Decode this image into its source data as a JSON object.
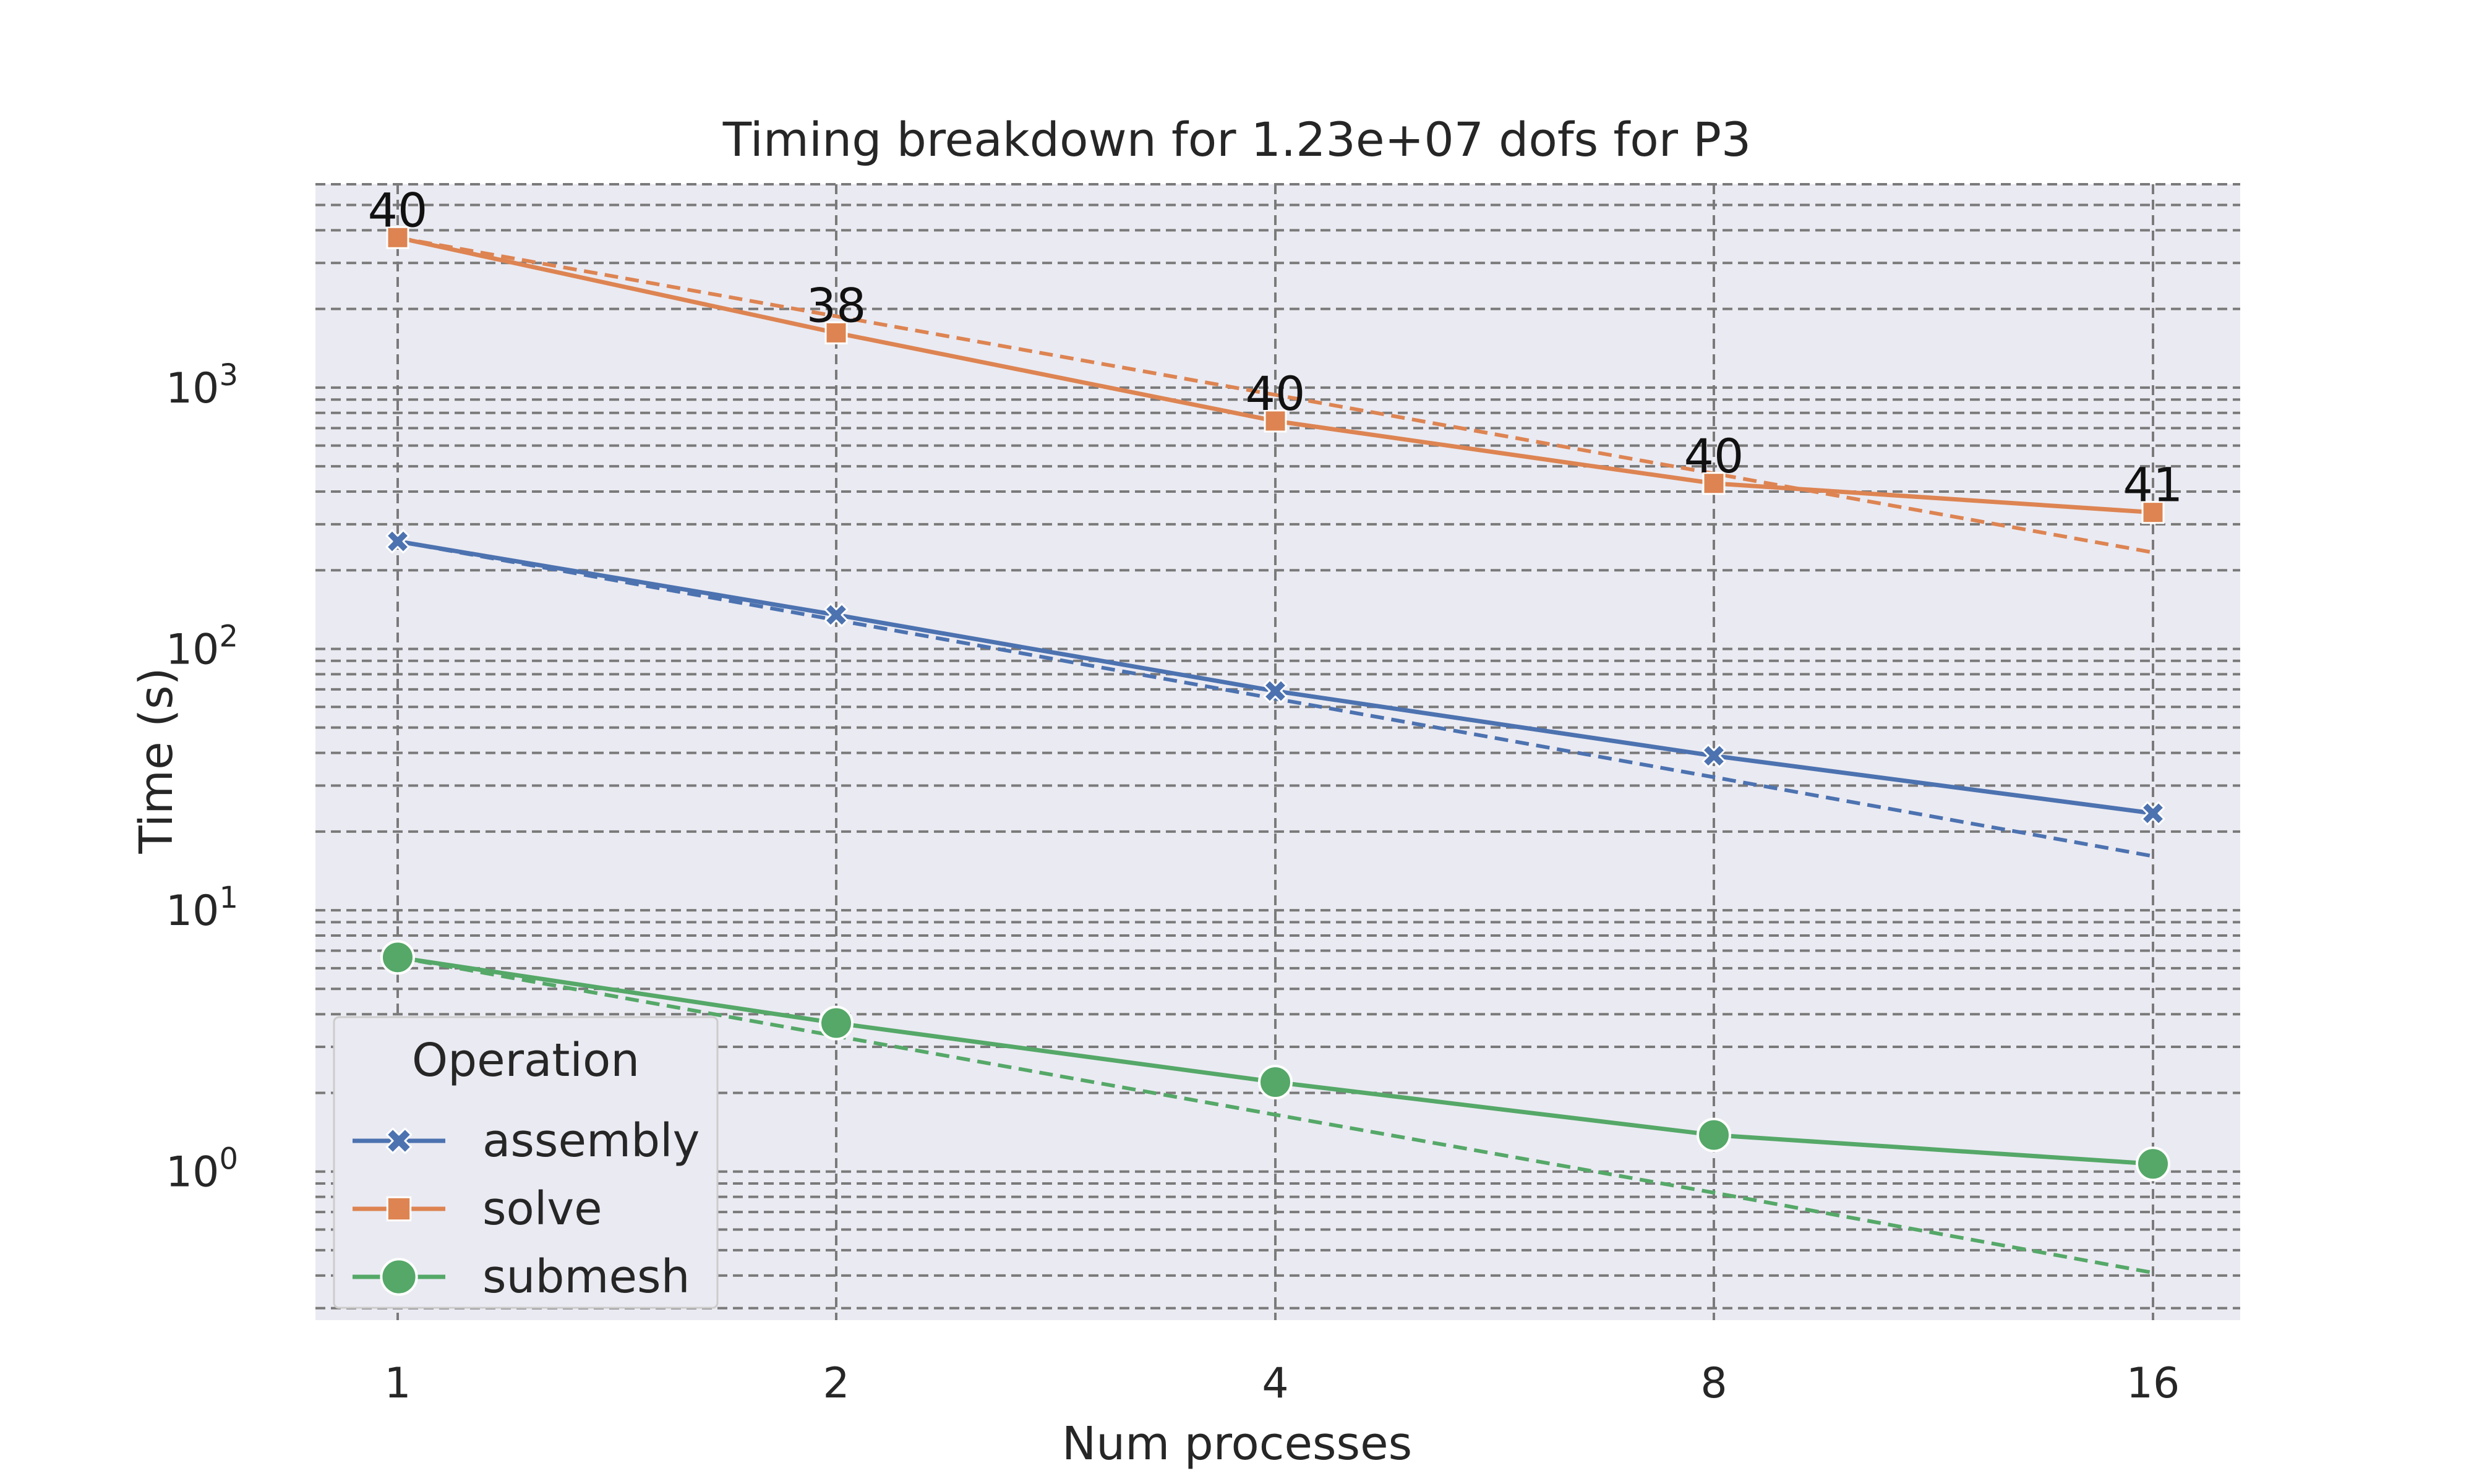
{
  "chart_data": {
    "type": "line",
    "title": "Timing breakdown for 1.23e+07 dofs for P3",
    "xlabel": "Num processes",
    "ylabel": "Time (s)",
    "x_scale": "log2",
    "y_scale": "log10",
    "x": [
      1,
      2,
      4,
      8,
      16
    ],
    "x_tick_labels": [
      "1",
      "2",
      "4",
      "8",
      "16"
    ],
    "y_tick_labels": [
      {
        "value": 1,
        "base": "10",
        "exp": "0"
      },
      {
        "value": 10,
        "base": "10",
        "exp": "1"
      },
      {
        "value": 100,
        "base": "10",
        "exp": "2"
      },
      {
        "value": 1000,
        "base": "10",
        "exp": "3"
      }
    ],
    "ylim": [
      0.27,
      6000
    ],
    "grid": true,
    "background": "#eaeaf2",
    "series": [
      {
        "name": "assembly",
        "color": "#4c72b0",
        "marker": "x",
        "values": [
          258,
          135,
          69,
          39,
          23.5
        ],
        "ideal": [
          258,
          129,
          64.5,
          32.3,
          16.1
        ]
      },
      {
        "name": "solve",
        "color": "#dd8452",
        "marker": "square",
        "values": [
          3750,
          1620,
          745,
          430,
          333
        ],
        "ideal": [
          3750,
          1875,
          938,
          469,
          234
        ],
        "annotations": [
          "40",
          "38",
          "40",
          "40",
          "41"
        ]
      },
      {
        "name": "submesh",
        "color": "#55a868",
        "marker": "circle",
        "values": [
          6.6,
          3.7,
          2.2,
          1.38,
          1.07
        ],
        "ideal": [
          6.6,
          3.3,
          1.65,
          0.83,
          0.41
        ]
      }
    ],
    "legend": {
      "title": "Operation",
      "position": "lower-left"
    }
  }
}
